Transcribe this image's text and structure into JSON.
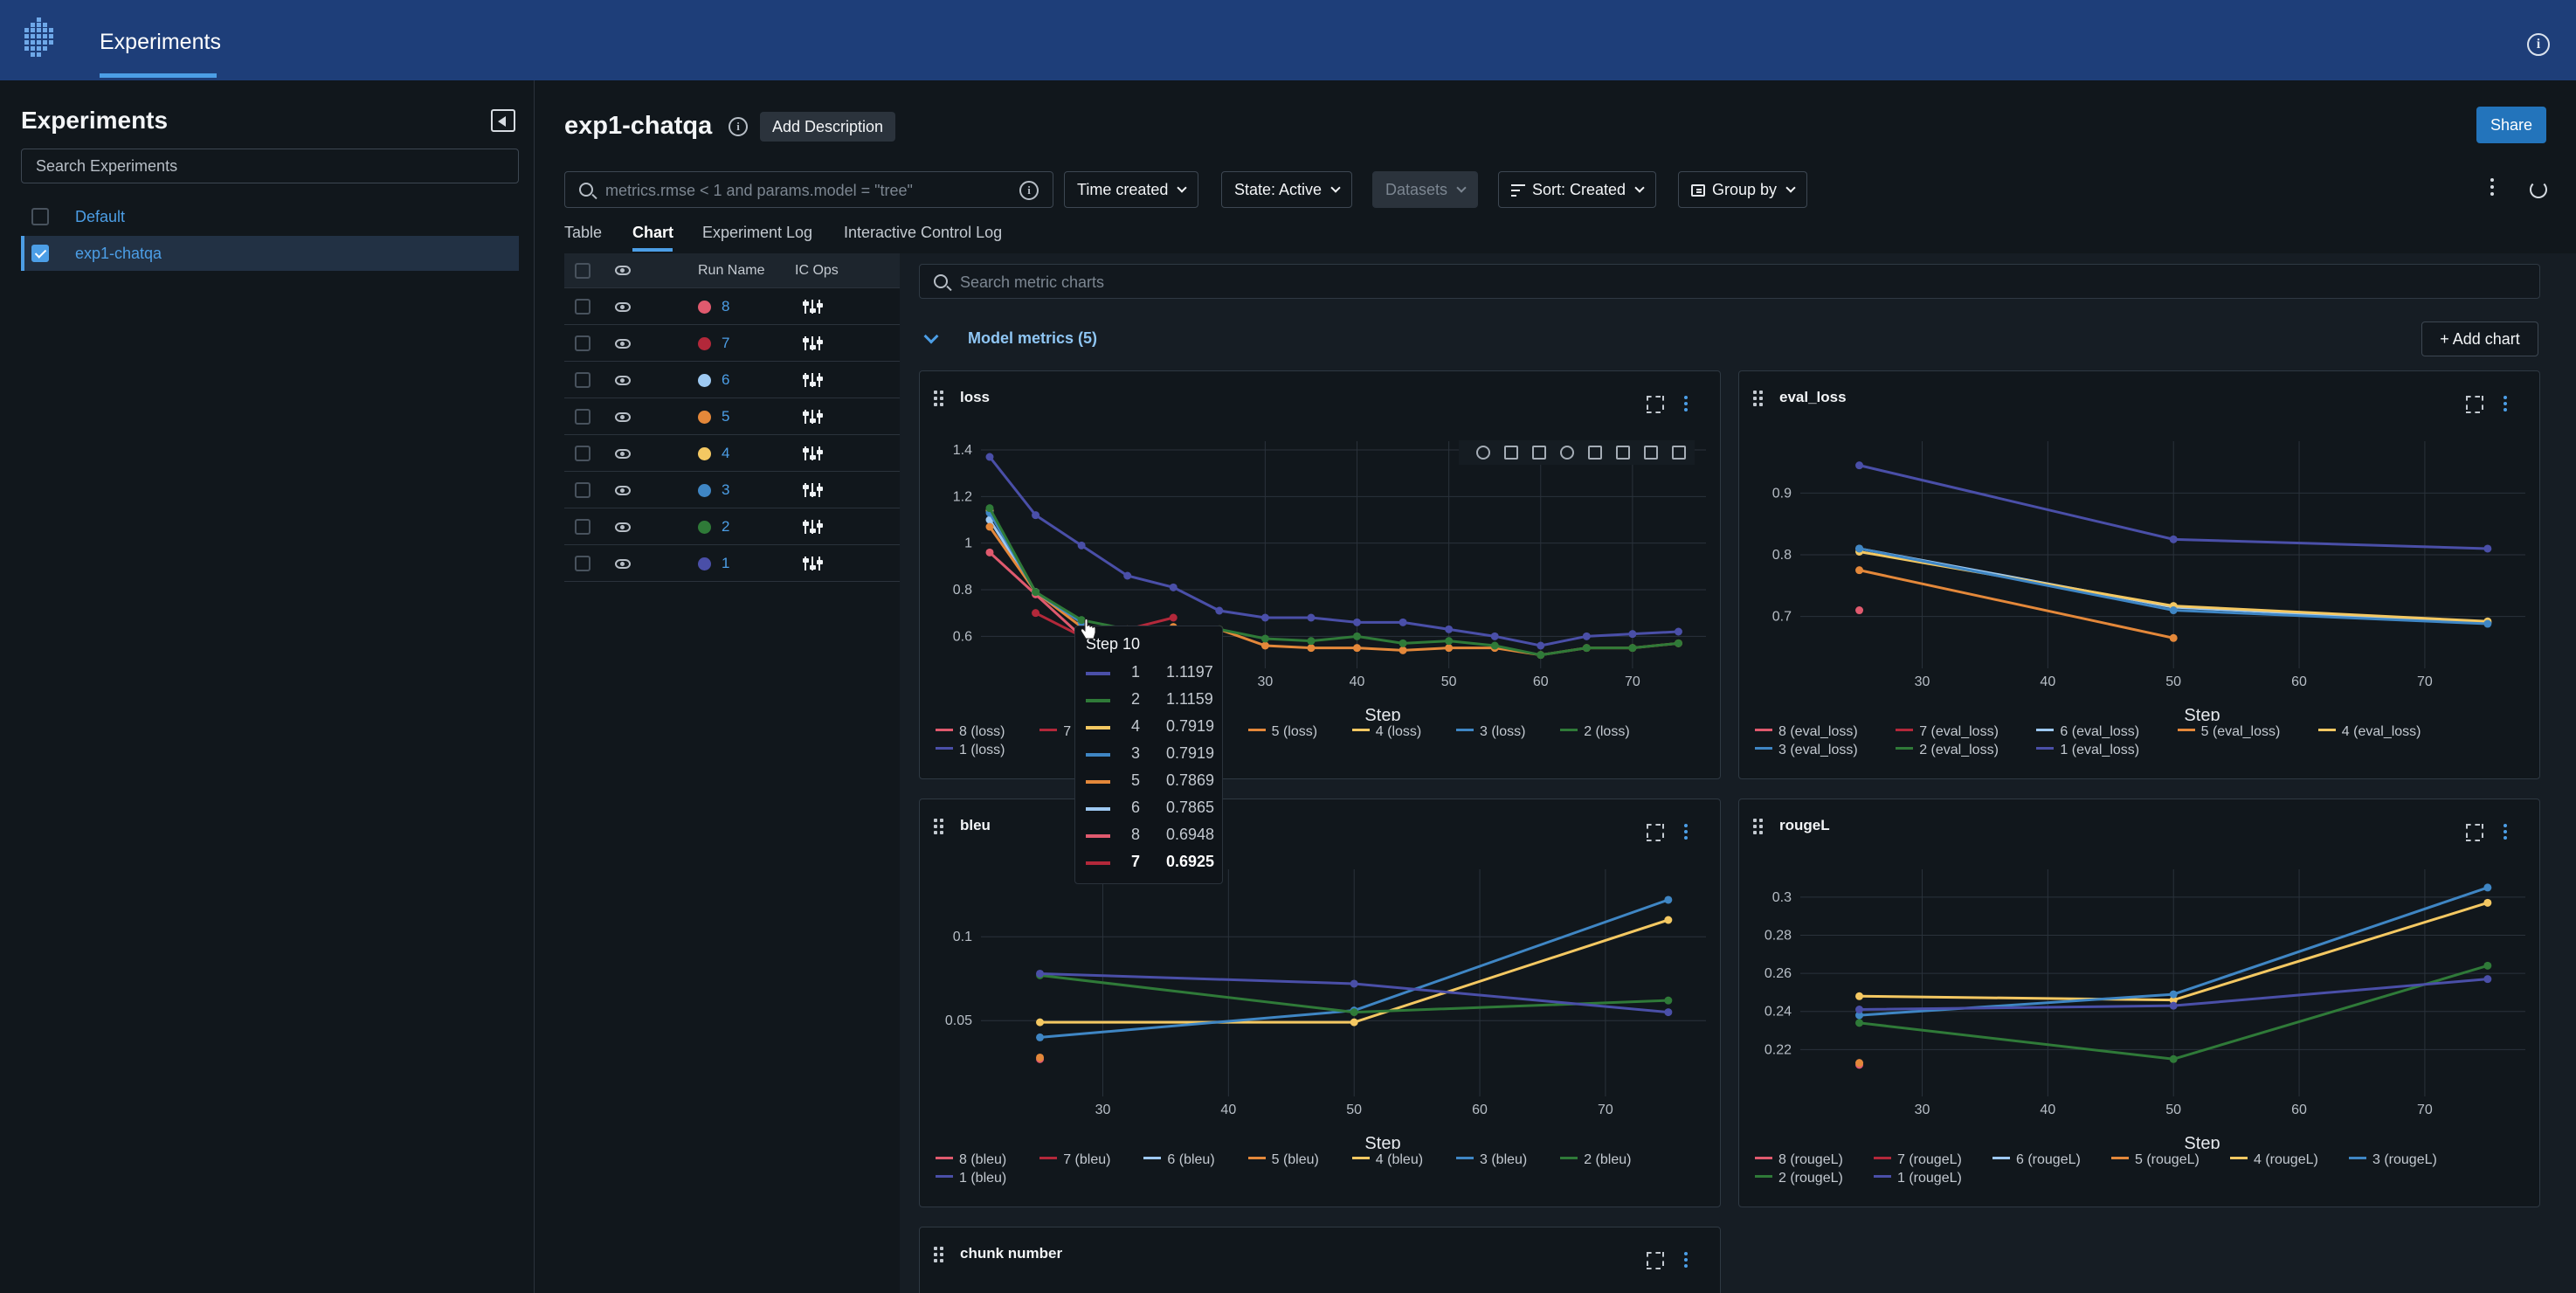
{
  "header": {
    "tab_label": "Experiments"
  },
  "sidebar": {
    "title": "Experiments",
    "search_placeholder": "Search Experiments",
    "items": [
      {
        "label": "Default",
        "checked": false
      },
      {
        "label": "exp1-chatqa",
        "checked": true
      }
    ]
  },
  "main": {
    "title": "exp1-chatqa",
    "add_description": "Add Description",
    "share": "Share",
    "search_placeholder": "metrics.rmse < 1 and params.model = \"tree\"",
    "filters": {
      "time": "Time created",
      "state": "State: Active",
      "datasets": "Datasets",
      "sort": "Sort: Created",
      "group": "Group by"
    },
    "tabs": [
      "Table",
      "Chart",
      "Experiment Log",
      "Interactive Control Log"
    ],
    "active_tab": "Chart"
  },
  "runs_table": {
    "headers": {
      "run_name": "Run Name",
      "ic_ops": "IC Ops"
    },
    "rows": [
      {
        "name": "8",
        "color": "#e05a6e"
      },
      {
        "name": "7",
        "color": "#b3283a"
      },
      {
        "name": "6",
        "color": "#9ec9f2"
      },
      {
        "name": "5",
        "color": "#e4883a"
      },
      {
        "name": "4",
        "color": "#f4c862"
      },
      {
        "name": "3",
        "color": "#3f86c4"
      },
      {
        "name": "2",
        "color": "#2f7a38"
      },
      {
        "name": "1",
        "color": "#4a4fa8"
      }
    ]
  },
  "charts_section": {
    "search_placeholder": "Search metric charts",
    "title": "Model metrics (5)",
    "add_chart": "Add chart"
  },
  "tooltip": {
    "title": "Step 10",
    "rows": [
      {
        "run": "1",
        "value": "1.1197",
        "color": "#4a4fa8",
        "bold": false
      },
      {
        "run": "2",
        "value": "1.1159",
        "color": "#2f7a38",
        "bold": false
      },
      {
        "run": "4",
        "value": "0.7919",
        "color": "#f4c862",
        "bold": false
      },
      {
        "run": "3",
        "value": "0.7919",
        "color": "#3f86c4",
        "bold": false
      },
      {
        "run": "5",
        "value": "0.7869",
        "color": "#e4883a",
        "bold": false
      },
      {
        "run": "6",
        "value": "0.7865",
        "color": "#9ec9f2",
        "bold": false
      },
      {
        "run": "8",
        "value": "0.6948",
        "color": "#e05a6e",
        "bold": false
      },
      {
        "run": "7",
        "value": "0.6925",
        "color": "#b3283a",
        "bold": true
      }
    ]
  },
  "chart_data": [
    {
      "type": "line",
      "title": "loss",
      "xlabel": "Step",
      "ylabel": "",
      "xlim": [
        0,
        78
      ],
      "ylim": [
        0.5,
        1.4
      ],
      "xticks": [
        30,
        40,
        50,
        60,
        70
      ],
      "yticks": [
        0.6,
        0.8,
        1,
        1.2,
        1.4
      ],
      "ytick_labels": [
        "0.6",
        "0.8",
        "1",
        "1.2",
        "1.4"
      ],
      "series": [
        {
          "name": "8 (loss)",
          "color": "#e05a6e",
          "x": [
            0,
            5,
            10
          ],
          "y": [
            0.96,
            0.78,
            0.6
          ]
        },
        {
          "name": "7 (loss)",
          "color": "#b3283a",
          "x": [
            5,
            10,
            15,
            20
          ],
          "y": [
            0.7,
            0.6,
            0.63,
            0.68
          ]
        },
        {
          "name": "6 (loss)",
          "color": "#9ec9f2",
          "x": [
            0,
            5,
            10
          ],
          "y": [
            1.1,
            0.79,
            0.66
          ]
        },
        {
          "name": "5 (loss)",
          "color": "#e4883a",
          "x": [
            0,
            5,
            10,
            15,
            20,
            25,
            30,
            35,
            40,
            45,
            50,
            55,
            60,
            65,
            70,
            75
          ],
          "y": [
            1.07,
            0.79,
            0.64,
            0.63,
            0.64,
            0.63,
            0.56,
            0.55,
            0.55,
            0.54,
            0.55,
            0.55,
            0.52,
            0.55,
            0.55,
            0.57
          ]
        },
        {
          "name": "4 (loss)",
          "color": "#f4c862",
          "x": [
            0,
            5,
            10
          ],
          "y": [
            1.14,
            0.79,
            0.66
          ]
        },
        {
          "name": "3 (loss)",
          "color": "#3f86c4",
          "x": [
            0,
            5,
            10
          ],
          "y": [
            1.13,
            0.79,
            0.66
          ]
        },
        {
          "name": "2 (loss)",
          "color": "#2f7a38",
          "x": [
            0,
            5,
            10,
            15,
            20,
            25,
            30,
            35,
            40,
            45,
            50,
            55,
            60,
            65,
            70,
            75
          ],
          "y": [
            1.15,
            0.79,
            0.67,
            0.63,
            0.63,
            0.63,
            0.59,
            0.58,
            0.6,
            0.57,
            0.58,
            0.56,
            0.52,
            0.55,
            0.55,
            0.57
          ]
        },
        {
          "name": "1 (loss)",
          "color": "#4a4fa8",
          "x": [
            0,
            5,
            10,
            15,
            20,
            25,
            30,
            35,
            40,
            45,
            50,
            55,
            60,
            65,
            70,
            75
          ],
          "y": [
            1.37,
            1.12,
            0.99,
            0.86,
            0.81,
            0.71,
            0.68,
            0.68,
            0.66,
            0.66,
            0.63,
            0.6,
            0.56,
            0.6,
            0.61,
            0.62
          ]
        }
      ]
    },
    {
      "type": "line",
      "title": "eval_loss",
      "xlabel": "Step",
      "ylabel": "",
      "xlim": [
        21,
        78
      ],
      "ylim": [
        0.63,
        0.97
      ],
      "xticks": [
        30,
        40,
        50,
        60,
        70
      ],
      "yticks": [
        0.7,
        0.8,
        0.9
      ],
      "ytick_labels": [
        "0.7",
        "0.8",
        "0.9"
      ],
      "series": [
        {
          "name": "8 (eval_loss)",
          "color": "#e05a6e",
          "x": [
            25
          ],
          "y": [
            0.71
          ]
        },
        {
          "name": "7 (eval_loss)",
          "color": "#b3283a",
          "x": [],
          "y": []
        },
        {
          "name": "6 (eval_loss)",
          "color": "#9ec9f2",
          "x": [
            25,
            50,
            75
          ],
          "y": [
            0.81,
            0.715,
            0.69
          ]
        },
        {
          "name": "5 (eval_loss)",
          "color": "#e4883a",
          "x": [
            25,
            50
          ],
          "y": [
            0.775,
            0.665
          ]
        },
        {
          "name": "4 (eval_loss)",
          "color": "#f4c862",
          "x": [
            25,
            50,
            75
          ],
          "y": [
            0.805,
            0.717,
            0.692
          ]
        },
        {
          "name": "3 (eval_loss)",
          "color": "#3f86c4",
          "x": [
            25,
            50,
            75
          ],
          "y": [
            0.81,
            0.71,
            0.688
          ]
        },
        {
          "name": "2 (eval_loss)",
          "color": "#2f7a38",
          "x": [],
          "y": []
        },
        {
          "name": "1 (eval_loss)",
          "color": "#4a4fa8",
          "x": [
            25,
            50,
            75
          ],
          "y": [
            0.945,
            0.825,
            0.81
          ]
        }
      ]
    },
    {
      "type": "line",
      "title": "bleu",
      "xlabel": "Step",
      "ylabel": "",
      "xlim": [
        21,
        78
      ],
      "ylim": [
        0.01,
        0.135
      ],
      "xticks": [
        30,
        40,
        50,
        60,
        70
      ],
      "yticks": [
        0.05,
        0.1
      ],
      "ytick_labels": [
        "0.05",
        "0.1"
      ],
      "series": [
        {
          "name": "8 (bleu)",
          "color": "#e05a6e",
          "x": [
            25
          ],
          "y": [
            0.027
          ]
        },
        {
          "name": "7 (bleu)",
          "color": "#b3283a",
          "x": [],
          "y": []
        },
        {
          "name": "6 (bleu)",
          "color": "#9ec9f2",
          "x": [],
          "y": []
        },
        {
          "name": "5 (bleu)",
          "color": "#e4883a",
          "x": [
            25
          ],
          "y": [
            0.028
          ]
        },
        {
          "name": "4 (bleu)",
          "color": "#f4c862",
          "x": [
            25,
            50,
            75
          ],
          "y": [
            0.049,
            0.049,
            0.11
          ]
        },
        {
          "name": "3 (bleu)",
          "color": "#3f86c4",
          "x": [
            25,
            50,
            75
          ],
          "y": [
            0.04,
            0.056,
            0.122
          ]
        },
        {
          "name": "2 (bleu)",
          "color": "#2f7a38",
          "x": [
            25,
            50,
            75
          ],
          "y": [
            0.077,
            0.055,
            0.062
          ]
        },
        {
          "name": "1 (bleu)",
          "color": "#4a4fa8",
          "x": [
            25,
            50,
            75
          ],
          "y": [
            0.078,
            0.072,
            0.055
          ]
        }
      ]
    },
    {
      "type": "line",
      "title": "rougeL",
      "xlabel": "Step",
      "ylabel": "",
      "xlim": [
        21,
        78
      ],
      "ylim": [
        0.2,
        0.31
      ],
      "xticks": [
        30,
        40,
        50,
        60,
        70
      ],
      "yticks": [
        0.22,
        0.24,
        0.26,
        0.28,
        0.3
      ],
      "ytick_labels": [
        "0.22",
        "0.24",
        "0.26",
        "0.28",
        "0.3"
      ],
      "series": [
        {
          "name": "8 (rougeL)",
          "color": "#e05a6e",
          "x": [
            25
          ],
          "y": [
            0.212
          ]
        },
        {
          "name": "7 (rougeL)",
          "color": "#b3283a",
          "x": [],
          "y": []
        },
        {
          "name": "6 (rougeL)",
          "color": "#9ec9f2",
          "x": [],
          "y": []
        },
        {
          "name": "5 (rougeL)",
          "color": "#e4883a",
          "x": [
            25
          ],
          "y": [
            0.213
          ]
        },
        {
          "name": "4 (rougeL)",
          "color": "#f4c862",
          "x": [
            25,
            50,
            75
          ],
          "y": [
            0.248,
            0.246,
            0.297
          ]
        },
        {
          "name": "3 (rougeL)",
          "color": "#3f86c4",
          "x": [
            25,
            50,
            75
          ],
          "y": [
            0.238,
            0.249,
            0.305
          ]
        },
        {
          "name": "2 (rougeL)",
          "color": "#2f7a38",
          "x": [
            25,
            50,
            75
          ],
          "y": [
            0.234,
            0.215,
            0.264
          ]
        },
        {
          "name": "1 (rougeL)",
          "color": "#4a4fa8",
          "x": [
            25,
            50,
            75
          ],
          "y": [
            0.241,
            0.243,
            0.257
          ]
        }
      ]
    },
    {
      "type": "line",
      "title": "chunk number",
      "series": []
    }
  ]
}
